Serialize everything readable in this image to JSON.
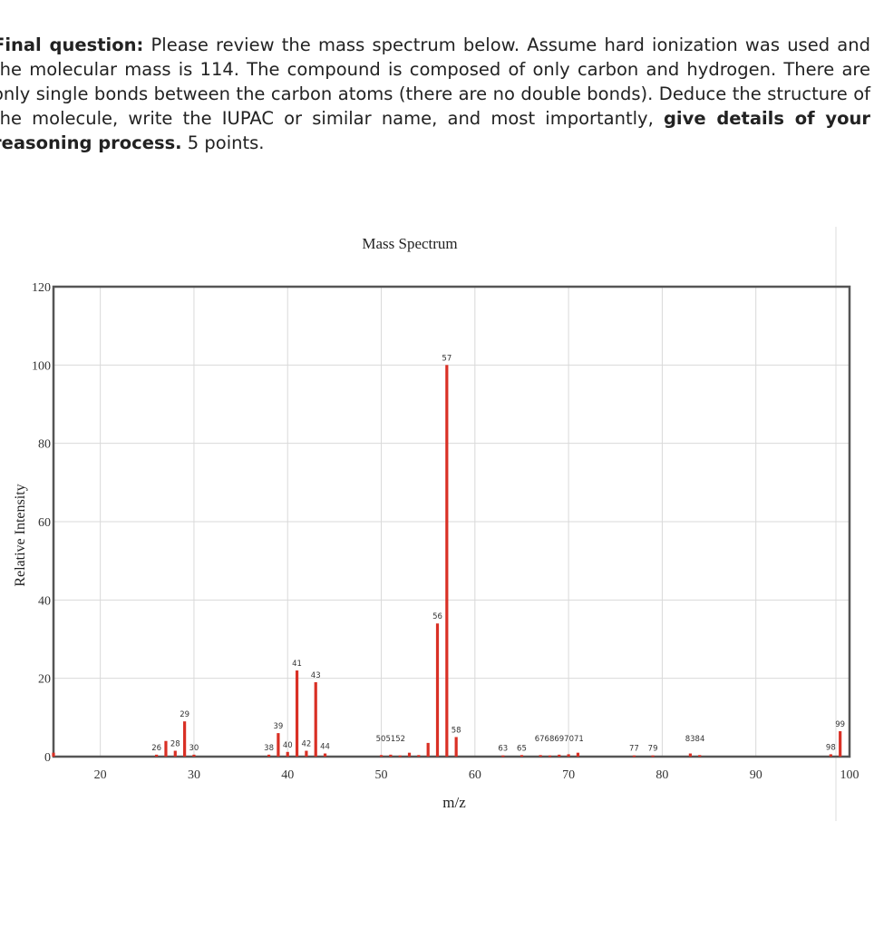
{
  "question": {
    "lead": "Final question:",
    "body": "Please review the mass spectrum below. Assume hard ionization was used and the molecular mass is 114. The compound is composed of only carbon and hydrogen. There are only single bonds between the carbon atoms (there are no double bonds). Deduce the structure of the molecule, write the IUPAC or similar name, and most importantly,",
    "emphasis": "give details of your reasoning process.",
    "points": "5 points."
  },
  "chart_data": {
    "type": "bar",
    "title": "Mass Spectrum",
    "xlabel": "m/z",
    "ylabel": "Relative Intensity",
    "xlim": [
      15,
      100
    ],
    "ylim": [
      0,
      120
    ],
    "xticks": [
      20,
      30,
      40,
      50,
      60,
      70,
      80,
      90,
      100
    ],
    "yticks": [
      0,
      20,
      40,
      60,
      80,
      100,
      120
    ],
    "grid": true,
    "color": "#d93025",
    "peaks": [
      {
        "mz": 15,
        "intensity": 1.0,
        "label": ""
      },
      {
        "mz": 26,
        "intensity": 0.5,
        "label": "26"
      },
      {
        "mz": 27,
        "intensity": 4.0,
        "label": ""
      },
      {
        "mz": 28,
        "intensity": 1.5,
        "label": "28"
      },
      {
        "mz": 29,
        "intensity": 9.0,
        "label": "29"
      },
      {
        "mz": 30,
        "intensity": 0.5,
        "label": "30"
      },
      {
        "mz": 38,
        "intensity": 0.5,
        "label": "38"
      },
      {
        "mz": 39,
        "intensity": 6.0,
        "label": "39"
      },
      {
        "mz": 40,
        "intensity": 1.2,
        "label": "40"
      },
      {
        "mz": 41,
        "intensity": 22.0,
        "label": "41"
      },
      {
        "mz": 42,
        "intensity": 1.5,
        "label": "42"
      },
      {
        "mz": 43,
        "intensity": 19.0,
        "label": "43"
      },
      {
        "mz": 44,
        "intensity": 0.8,
        "label": "44"
      },
      {
        "mz": 50,
        "intensity": 0.4,
        "label": ""
      },
      {
        "mz": 51,
        "intensity": 0.5,
        "label": ""
      },
      {
        "mz": 52,
        "intensity": 0.3,
        "label": ""
      },
      {
        "mz": 53,
        "intensity": 1.0,
        "label": ""
      },
      {
        "mz": 54,
        "intensity": 0.4,
        "label": ""
      },
      {
        "mz": 55,
        "intensity": 3.5,
        "label": ""
      },
      {
        "mz": 56,
        "intensity": 34.0,
        "label": "56"
      },
      {
        "mz": 57,
        "intensity": 100.0,
        "label": "57"
      },
      {
        "mz": 58,
        "intensity": 5.0,
        "label": "58"
      },
      {
        "mz": 63,
        "intensity": 0.3,
        "label": "63"
      },
      {
        "mz": 65,
        "intensity": 0.4,
        "label": "65"
      },
      {
        "mz": 67,
        "intensity": 0.4,
        "label": ""
      },
      {
        "mz": 68,
        "intensity": 0.3,
        "label": ""
      },
      {
        "mz": 69,
        "intensity": 0.5,
        "label": ""
      },
      {
        "mz": 70,
        "intensity": 0.6,
        "label": ""
      },
      {
        "mz": 71,
        "intensity": 1.0,
        "label": ""
      },
      {
        "mz": 77,
        "intensity": 0.3,
        "label": "77"
      },
      {
        "mz": 79,
        "intensity": 0.3,
        "label": "79"
      },
      {
        "mz": 83,
        "intensity": 0.8,
        "label": ""
      },
      {
        "mz": 84,
        "intensity": 0.4,
        "label": ""
      },
      {
        "mz": 98,
        "intensity": 0.6,
        "label": "98"
      },
      {
        "mz": 99,
        "intensity": 6.5,
        "label": "99"
      }
    ],
    "cluster_labels": [
      {
        "text": "505152",
        "mz": 51
      },
      {
        "text": "6768697071",
        "mz": 69
      },
      {
        "text": "8384",
        "mz": 83.5
      }
    ]
  }
}
